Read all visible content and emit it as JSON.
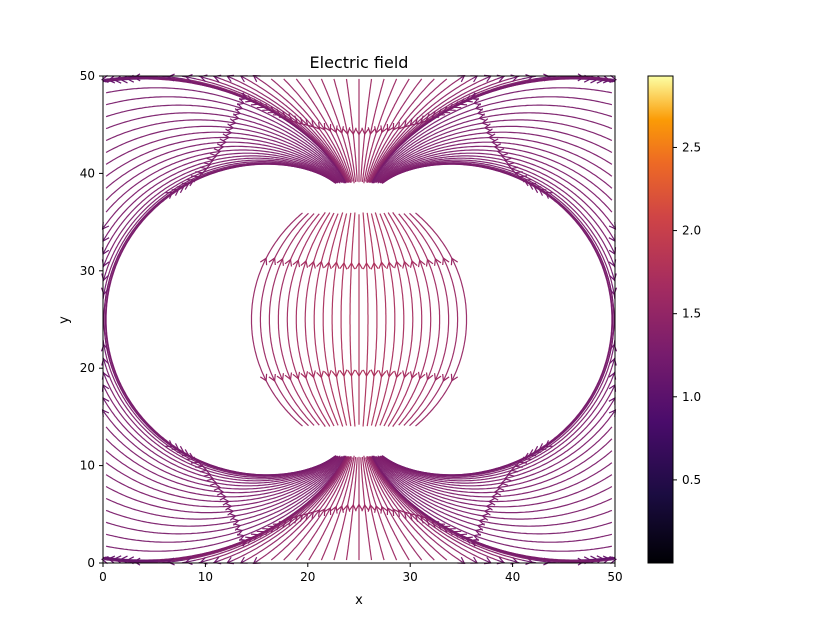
{
  "chart_data": {
    "type": "streamplot",
    "title": "Electric field",
    "xlabel": "x",
    "ylabel": "y",
    "xlim": [
      0,
      50
    ],
    "ylim": [
      0,
      50
    ],
    "x_ticks": [
      "0",
      "10",
      "20",
      "30",
      "40",
      "50"
    ],
    "y_ticks": [
      "0",
      "10",
      "20",
      "30",
      "40",
      "50"
    ],
    "colormap": "inferno",
    "colorbar": {
      "range": [
        0.0,
        2.93
      ],
      "ticks": [
        "0.5",
        "1.0",
        "1.5",
        "2.0",
        "2.5"
      ],
      "tick_values": [
        0.5,
        1.0,
        1.5,
        2.0,
        2.5
      ]
    },
    "grid": false,
    "legend": "none",
    "field": {
      "kind": "dipole-like field from two horizontal plates",
      "source_top": {
        "y": 38.5,
        "x_from": 22,
        "x_to": 28
      },
      "source_bottom": {
        "y": 11.5,
        "x_from": 22,
        "x_to": 28
      },
      "blank_frame": {
        "x_from": 12,
        "x_to": 38,
        "y_from": 12,
        "y_to": 38
      }
    }
  }
}
